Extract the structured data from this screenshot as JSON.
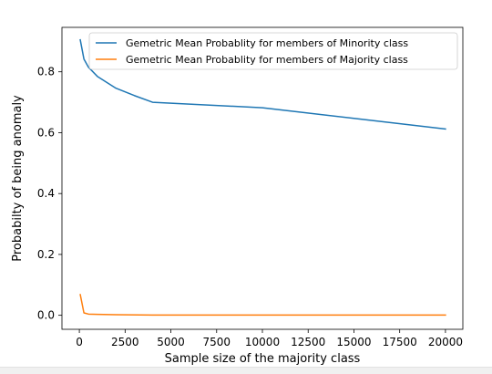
{
  "chart_data": {
    "type": "line",
    "title": "",
    "xlabel": "Sample size of the majority class",
    "ylabel": "Probabilty of being anomaly",
    "xlim": [
      -950,
      20950
    ],
    "ylim": [
      -0.046,
      0.946
    ],
    "xticks": [
      0,
      2500,
      5000,
      7500,
      10000,
      12500,
      15000,
      17500,
      20000
    ],
    "xtick_labels": [
      "0",
      "2500",
      "5000",
      "7500",
      "10000",
      "12500",
      "15000",
      "17500",
      "20000"
    ],
    "yticks": [
      0.0,
      0.2,
      0.4,
      0.6,
      0.8
    ],
    "ytick_labels": [
      "0.0",
      "0.2",
      "0.4",
      "0.6",
      "0.8"
    ],
    "grid": false,
    "legend_position": "upper right",
    "series": [
      {
        "name": "Gemetric Mean Probablity for members of Minority class",
        "color": "#1f77b4",
        "x": [
          50,
          250,
          500,
          1000,
          2000,
          3000,
          4000,
          5000,
          10000,
          15000,
          20000
        ],
        "y": [
          0.905,
          0.842,
          0.815,
          0.784,
          0.746,
          0.722,
          0.7,
          0.697,
          0.682,
          0.647,
          0.612
        ]
      },
      {
        "name": "Gemetric Mean Probablity for members of  Majority class",
        "color": "#ff7f0e",
        "x": [
          50,
          250,
          500,
          1000,
          2000,
          4000,
          5000,
          10000,
          15000,
          20000
        ],
        "y": [
          0.068,
          0.008,
          0.004,
          0.003,
          0.002,
          0.001,
          0.001,
          0.001,
          0.001,
          0.001
        ]
      }
    ]
  }
}
